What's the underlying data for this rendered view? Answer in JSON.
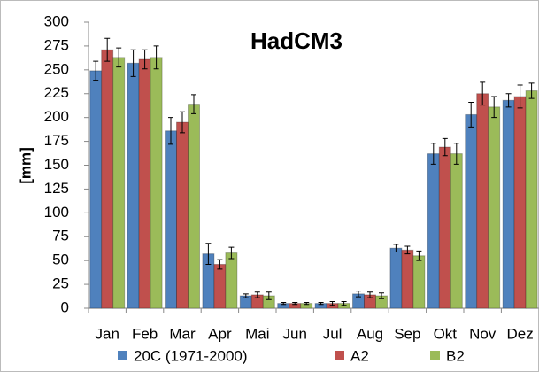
{
  "chart_data": {
    "type": "bar",
    "title": "HadCM3",
    "y_label": "[mm]",
    "categories": [
      "Jan",
      "Feb",
      "Mar",
      "Apr",
      "Mai",
      "Jun",
      "Jul",
      "Aug",
      "Sep",
      "Okt",
      "Nov",
      "Dez"
    ],
    "series": [
      {
        "name": "20C (1971-2000)",
        "color": "#4f81bd",
        "values": [
          249,
          257,
          186,
          57,
          13,
          5,
          5,
          15,
          63,
          162,
          203,
          218
        ],
        "errors": [
          10,
          14,
          14,
          11,
          2,
          1,
          1,
          3,
          4,
          11,
          13,
          7
        ]
      },
      {
        "name": "A2",
        "color": "#c0504d",
        "values": [
          271,
          261,
          195,
          46,
          14,
          5,
          5,
          14,
          61,
          169,
          225,
          222
        ],
        "errors": [
          12,
          10,
          11,
          5,
          3,
          1,
          2,
          3,
          4,
          9,
          12,
          12
        ]
      },
      {
        "name": "B2",
        "color": "#9bbb59",
        "values": [
          263,
          263,
          214,
          58,
          13,
          5,
          5,
          13,
          55,
          162,
          211,
          228
        ],
        "errors": [
          10,
          12,
          10,
          6,
          4,
          1,
          2,
          3,
          5,
          11,
          11,
          8
        ]
      }
    ],
    "ylim": [
      0,
      300
    ],
    "yticks": [
      0,
      25,
      50,
      75,
      100,
      125,
      150,
      175,
      200,
      225,
      250,
      275,
      300
    ],
    "grid": false
  }
}
